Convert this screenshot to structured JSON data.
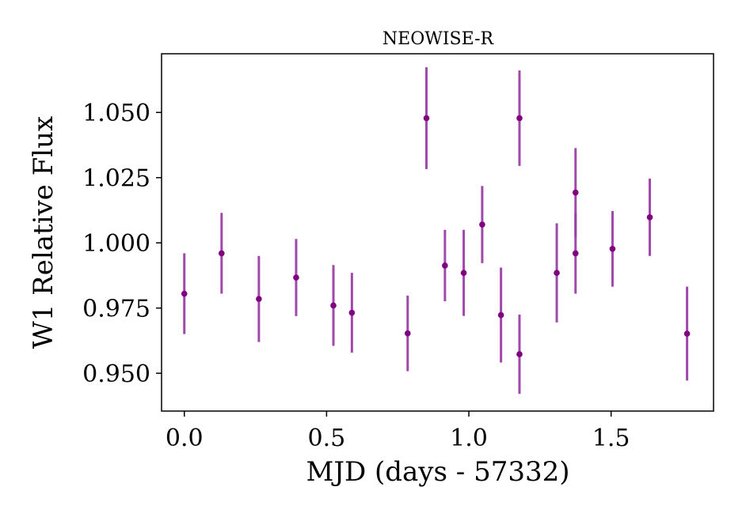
{
  "chart_data": {
    "type": "scatter",
    "title": "NEOWISE-R",
    "xlabel": "MJD (days - 57332)",
    "ylabel": "W1 Relative Flux",
    "xlim": [
      -0.08,
      1.86
    ],
    "ylim": [
      0.9355,
      1.0725
    ],
    "xticks": [
      0.0,
      0.5,
      1.0,
      1.5
    ],
    "xtick_labels": [
      "0.0",
      "0.5",
      "1.0",
      "1.5"
    ],
    "yticks": [
      0.95,
      0.975,
      1.0,
      1.025,
      1.05
    ],
    "ytick_labels": [
      "0.950",
      "0.975",
      "1.000",
      "1.025",
      "1.050"
    ],
    "grid": false,
    "legend": "none",
    "marker_color": "#800080",
    "errorbar_color": "#9b3fa6",
    "points": [
      {
        "x": 0.0,
        "y": 0.9805,
        "err": 0.0155
      },
      {
        "x": 0.131,
        "y": 0.996,
        "err": 0.0155
      },
      {
        "x": 0.262,
        "y": 0.9785,
        "err": 0.0165
      },
      {
        "x": 0.393,
        "y": 0.9867,
        "err": 0.0148
      },
      {
        "x": 0.524,
        "y": 0.976,
        "err": 0.0155
      },
      {
        "x": 0.589,
        "y": 0.9732,
        "err": 0.0153
      },
      {
        "x": 0.785,
        "y": 0.9653,
        "err": 0.0145
      },
      {
        "x": 0.851,
        "y": 1.0478,
        "err": 0.0195
      },
      {
        "x": 0.916,
        "y": 0.9913,
        "err": 0.0137
      },
      {
        "x": 0.982,
        "y": 0.9885,
        "err": 0.0165
      },
      {
        "x": 1.047,
        "y": 1.007,
        "err": 0.0148
      },
      {
        "x": 1.113,
        "y": 0.9723,
        "err": 0.0182
      },
      {
        "x": 1.178,
        "y": 1.0478,
        "err": 0.0183
      },
      {
        "x": 1.178,
        "y": 0.9573,
        "err": 0.0152
      },
      {
        "x": 1.309,
        "y": 0.9885,
        "err": 0.019
      },
      {
        "x": 1.375,
        "y": 1.0193,
        "err": 0.017
      },
      {
        "x": 1.375,
        "y": 0.996,
        "err": 0.0155
      },
      {
        "x": 1.505,
        "y": 0.9977,
        "err": 0.0145
      },
      {
        "x": 1.636,
        "y": 1.0098,
        "err": 0.0148
      },
      {
        "x": 1.767,
        "y": 0.9652,
        "err": 0.018
      }
    ]
  }
}
